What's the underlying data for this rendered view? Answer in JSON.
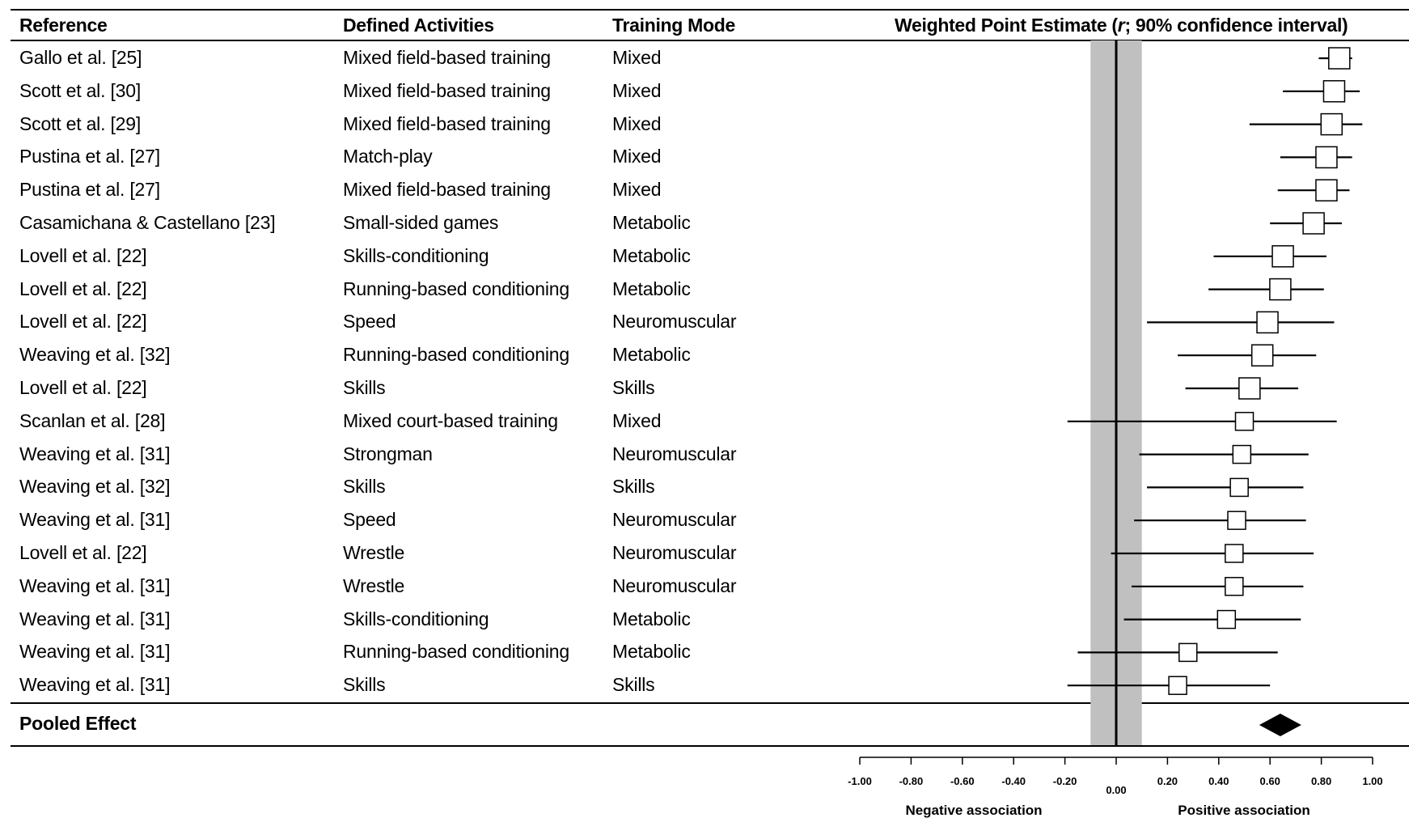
{
  "headers": {
    "reference": "Reference",
    "activities": "Defined Activities",
    "mode": "Training Mode",
    "estimate_prefix": "Weighted Point Estimate (",
    "estimate_r": "r",
    "estimate_suffix": "; 90% confidence interval)"
  },
  "pooled_label": "Pooled Effect",
  "chart_data": {
    "type": "forest",
    "xlim": [
      -1.0,
      1.0
    ],
    "ticks": [
      "-1.00",
      "-0.80",
      "-0.60",
      "-0.40",
      "-0.20",
      "0.00",
      "0.20",
      "0.40",
      "0.60",
      "0.80",
      "1.00"
    ],
    "tick_values": [
      -1.0,
      -0.8,
      -0.6,
      -0.4,
      -0.2,
      0.0,
      0.2,
      0.4,
      0.6,
      0.8,
      1.0
    ],
    "xlabel_negative": "Negative association",
    "xlabel_positive": "Positive association",
    "trivial_band": [
      -0.1,
      0.1
    ],
    "rows": [
      {
        "reference": "Gallo et al. [25]",
        "activity": "Mixed field-based training",
        "mode": "Mixed",
        "r": 0.87,
        "lower": 0.79,
        "upper": 0.92
      },
      {
        "reference": "Scott et al. [30]",
        "activity": "Mixed field-based training",
        "mode": "Mixed",
        "r": 0.85,
        "lower": 0.65,
        "upper": 0.95
      },
      {
        "reference": "Scott et al. [29]",
        "activity": "Mixed field-based training",
        "mode": "Mixed",
        "r": 0.84,
        "lower": 0.52,
        "upper": 0.96
      },
      {
        "reference": "Pustina et al. [27]",
        "activity": "Match-play",
        "mode": "Mixed",
        "r": 0.82,
        "lower": 0.64,
        "upper": 0.92
      },
      {
        "reference": "Pustina et al. [27]",
        "activity": "Mixed field-based training",
        "mode": "Mixed",
        "r": 0.82,
        "lower": 0.63,
        "upper": 0.91
      },
      {
        "reference": "Casamichana & Castellano [23]",
        "activity": "Small-sided games",
        "mode": "Metabolic",
        "r": 0.77,
        "lower": 0.6,
        "upper": 0.88
      },
      {
        "reference": "Lovell et al. [22]",
        "activity": "Skills-conditioning",
        "mode": "Metabolic",
        "r": 0.65,
        "lower": 0.38,
        "upper": 0.82
      },
      {
        "reference": "Lovell et al. [22]",
        "activity": "Running-based conditioning",
        "mode": "Metabolic",
        "r": 0.64,
        "lower": 0.36,
        "upper": 0.81
      },
      {
        "reference": "Lovell et al. [22]",
        "activity": "Speed",
        "mode": "Neuromuscular",
        "r": 0.59,
        "lower": 0.12,
        "upper": 0.85
      },
      {
        "reference": "Weaving et al. [32]",
        "activity": "Running-based conditioning",
        "mode": "Metabolic",
        "r": 0.57,
        "lower": 0.24,
        "upper": 0.78
      },
      {
        "reference": "Lovell et al. [22]",
        "activity": "Skills",
        "mode": "Skills",
        "r": 0.52,
        "lower": 0.27,
        "upper": 0.71
      },
      {
        "reference": "Scanlan et al. [28]",
        "activity": "Mixed court-based training",
        "mode": "Mixed",
        "r": 0.5,
        "lower": -0.19,
        "upper": 0.86
      },
      {
        "reference": "Weaving et al. [31]",
        "activity": "Strongman",
        "mode": "Neuromuscular",
        "r": 0.49,
        "lower": 0.09,
        "upper": 0.75
      },
      {
        "reference": "Weaving et al. [32]",
        "activity": "Skills",
        "mode": "Skills",
        "r": 0.48,
        "lower": 0.12,
        "upper": 0.73
      },
      {
        "reference": "Weaving et al. [31]",
        "activity": "Speed",
        "mode": "Neuromuscular",
        "r": 0.47,
        "lower": 0.07,
        "upper": 0.74
      },
      {
        "reference": "Lovell et al. [22]",
        "activity": "Wrestle",
        "mode": "Neuromuscular",
        "r": 0.46,
        "lower": -0.02,
        "upper": 0.77
      },
      {
        "reference": "Weaving et al. [31]",
        "activity": "Wrestle",
        "mode": "Neuromuscular",
        "r": 0.46,
        "lower": 0.06,
        "upper": 0.73
      },
      {
        "reference": "Weaving et al. [31]",
        "activity": "Skills-conditioning",
        "mode": "Metabolic",
        "r": 0.43,
        "lower": 0.03,
        "upper": 0.72
      },
      {
        "reference": "Weaving et al. [31]",
        "activity": "Running-based conditioning",
        "mode": "Metabolic",
        "r": 0.28,
        "lower": -0.15,
        "upper": 0.63
      },
      {
        "reference": "Weaving et al. [31]",
        "activity": "Skills",
        "mode": "Skills",
        "r": 0.24,
        "lower": -0.19,
        "upper": 0.6
      }
    ],
    "pooled": {
      "r": 0.64
    }
  }
}
